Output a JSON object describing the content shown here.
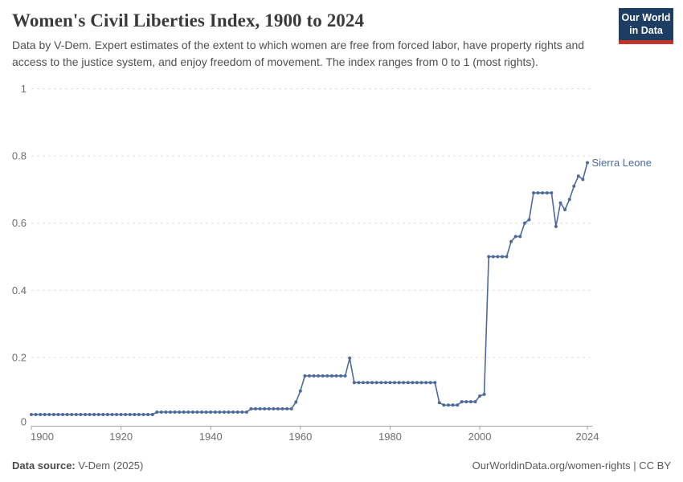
{
  "header": {
    "title": "Women's Civil Liberties Index, 1900 to 2024",
    "subtitle": "Data by V-Dem. Expert estimates of the extent to which women are free from forced labor, have property rights and access to the justice system, and enjoy freedom of movement. The index ranges from 0 to 1 (most rights).",
    "logo": {
      "line1": "Our World",
      "line2": "in Data"
    }
  },
  "footer": {
    "source_label": "Data source:",
    "source_value": " V-Dem (2025)",
    "link_text": "OurWorldinData.org/women-rights",
    "separator": " | ",
    "license": "CC BY"
  },
  "colors": {
    "line_blue": "#4c6a9c",
    "grid": "#dcdcdc",
    "axis": "#a3a3a3",
    "tick_text": "#6e6e6e",
    "logo_navy": "#1d3d63",
    "logo_red": "#c0362c"
  },
  "chart_data": {
    "type": "line",
    "title": "Women's Civil Liberties Index, 1900 to 2024",
    "xlabel": "",
    "ylabel": "",
    "xlim": [
      1900,
      2024
    ],
    "ylim": [
      0,
      1
    ],
    "x_ticks": [
      1900,
      1920,
      1940,
      1960,
      1980,
      2000,
      2024
    ],
    "y_ticks": [
      0,
      0.2,
      0.4,
      0.6,
      0.8,
      1
    ],
    "grid": "horizontal-dashed",
    "legend_position": "end-of-line-label",
    "series": [
      {
        "name": "Sierra Leone",
        "start_year": 1900,
        "values": [
          0.03,
          0.03,
          0.03,
          0.03,
          0.03,
          0.03,
          0.03,
          0.03,
          0.03,
          0.03,
          0.03,
          0.03,
          0.03,
          0.03,
          0.03,
          0.03,
          0.03,
          0.03,
          0.03,
          0.03,
          0.03,
          0.03,
          0.03,
          0.03,
          0.03,
          0.03,
          0.03,
          0.03,
          0.037,
          0.037,
          0.037,
          0.037,
          0.037,
          0.037,
          0.037,
          0.037,
          0.037,
          0.037,
          0.037,
          0.037,
          0.037,
          0.037,
          0.037,
          0.037,
          0.037,
          0.037,
          0.037,
          0.037,
          0.037,
          0.047,
          0.047,
          0.047,
          0.047,
          0.047,
          0.047,
          0.047,
          0.047,
          0.047,
          0.047,
          0.067,
          0.1,
          0.145,
          0.145,
          0.145,
          0.145,
          0.145,
          0.145,
          0.145,
          0.145,
          0.145,
          0.145,
          0.198,
          0.125,
          0.125,
          0.125,
          0.125,
          0.125,
          0.125,
          0.125,
          0.125,
          0.125,
          0.125,
          0.125,
          0.125,
          0.125,
          0.125,
          0.125,
          0.125,
          0.125,
          0.125,
          0.125,
          0.065,
          0.058,
          0.058,
          0.058,
          0.058,
          0.068,
          0.068,
          0.068,
          0.068,
          0.085,
          0.09,
          0.5,
          0.5,
          0.5,
          0.5,
          0.5,
          0.545,
          0.56,
          0.56,
          0.6,
          0.61,
          0.69,
          0.69,
          0.69,
          0.69,
          0.69,
          0.59,
          0.66,
          0.64,
          0.67,
          0.71,
          0.74,
          0.73,
          0.78
        ]
      }
    ]
  }
}
